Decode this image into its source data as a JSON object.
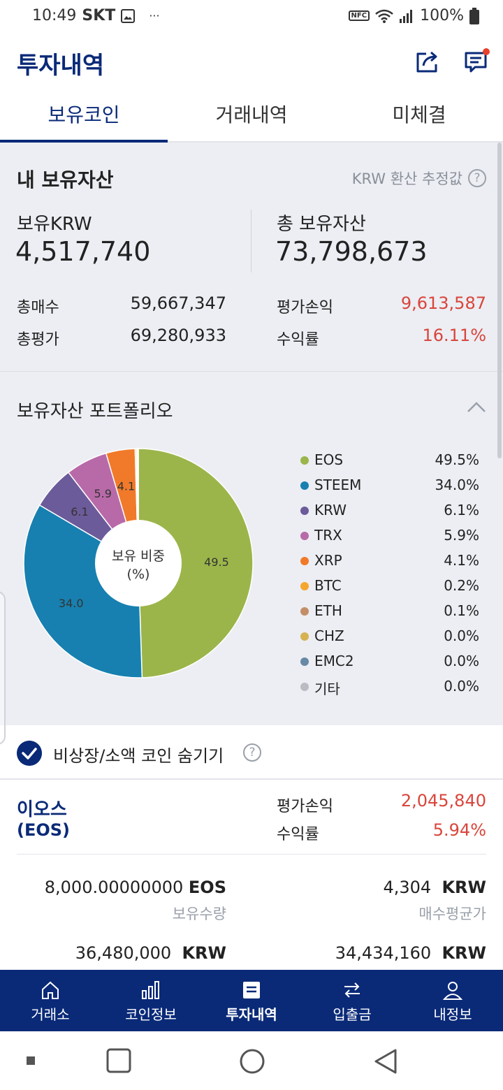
{
  "status": {
    "time": "10:49",
    "carrier": "SKT",
    "more": "···",
    "nfc": "NFC",
    "battery": "100%"
  },
  "header": {
    "title": "투자내역"
  },
  "tabs": [
    {
      "label": "보유코인",
      "active": true
    },
    {
      "label": "거래내역",
      "active": false
    },
    {
      "label": "미체결",
      "active": false
    }
  ],
  "summary": {
    "title": "내 보유자산",
    "estimate_label": "KRW 환산 추정값",
    "held_krw_label": "보유KRW",
    "held_krw_value": "4,517,740",
    "total_assets_label": "총 보유자산",
    "total_assets_value": "73,798,673",
    "total_buy_label": "총매수",
    "total_buy_value": "59,667,347",
    "total_eval_label": "총평가",
    "total_eval_value": "69,280,933",
    "pnl_label": "평가손익",
    "pnl_value": "9,613,587",
    "yield_label": "수익률",
    "yield_value": "16.11%"
  },
  "portfolio": {
    "title": "보유자산 포트폴리오",
    "center_label_1": "보유 비중",
    "center_label_2": "(%)",
    "slice_labels": [
      "49.5",
      "34.0",
      "6.1",
      "5.9",
      "4.1"
    ],
    "legend": [
      {
        "name": "EOS",
        "pct": "49.5%"
      },
      {
        "name": "STEEM",
        "pct": "34.0%"
      },
      {
        "name": "KRW",
        "pct": "6.1%"
      },
      {
        "name": "TRX",
        "pct": "5.9%"
      },
      {
        "name": "XRP",
        "pct": "4.1%"
      },
      {
        "name": "BTC",
        "pct": "0.2%"
      },
      {
        "name": "ETH",
        "pct": "0.1%"
      },
      {
        "name": "CHZ",
        "pct": "0.0%"
      },
      {
        "name": "EMC2",
        "pct": "0.0%"
      },
      {
        "name": "기타",
        "pct": "0.0%"
      }
    ]
  },
  "chart_data": {
    "type": "pie",
    "categories": [
      "EOS",
      "STEEM",
      "KRW",
      "TRX",
      "XRP",
      "BTC",
      "ETH",
      "CHZ",
      "EMC2",
      "기타"
    ],
    "values": [
      49.5,
      34.0,
      6.1,
      5.9,
      4.1,
      0.2,
      0.1,
      0.0,
      0.0,
      0.0
    ],
    "colors": [
      "#9bb54a",
      "#1780b0",
      "#6c5b9a",
      "#b86aa8",
      "#f07a2a",
      "#f5a630",
      "#c48f68",
      "#d6b253",
      "#6789a6",
      "#b9bcc2"
    ],
    "legend_position": "right"
  },
  "hide_small": {
    "label": "비상장/소액 코인 숨기기",
    "checked": true
  },
  "coin": {
    "name_kr": "이오스",
    "name_symbol": "(EOS)",
    "pnl_label": "평가손익",
    "pnl_value": "2,045,840",
    "yield_label": "수익률",
    "yield_value": "5.94%",
    "qty_value": "8,000.00000000",
    "qty_unit": "EOS",
    "qty_label": "보유수량",
    "avg_value": "4,304",
    "avg_unit": "KRW",
    "avg_label": "매수평균가",
    "eval_value": "36,480,000",
    "eval_unit": "KRW",
    "buy_value": "34,434,160",
    "buy_unit": "KRW"
  },
  "bottom_nav": [
    {
      "label": "거래소",
      "icon": "home-icon"
    },
    {
      "label": "코인정보",
      "icon": "bar-chart-icon"
    },
    {
      "label": "투자내역",
      "icon": "list-icon",
      "active": true
    },
    {
      "label": "입출금",
      "icon": "transfer-icon"
    },
    {
      "label": "내정보",
      "icon": "person-icon"
    }
  ]
}
